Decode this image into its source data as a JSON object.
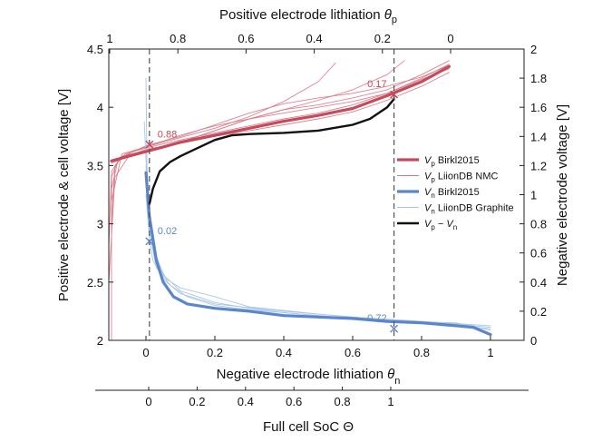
{
  "chart_data": {
    "type": "line",
    "top_axis": {
      "title_main": "Positive electrode lithiation ",
      "title_symbol": "θ",
      "title_sub": "p",
      "ticks": [
        {
          "value": 1,
          "label": "1"
        },
        {
          "value": 0.8,
          "label": "0.8"
        },
        {
          "value": 0.6,
          "label": "0.6"
        },
        {
          "value": 0.4,
          "label": "0.4"
        },
        {
          "value": 0.2,
          "label": "0.2"
        },
        {
          "value": 0,
          "label": "0"
        }
      ]
    },
    "bottom_axis": {
      "title_main": "Negative electrode lithiation ",
      "title_symbol": "θ",
      "title_sub": "n",
      "xlim": [
        -0.12,
        1.05
      ],
      "ticks": [
        {
          "value": 0,
          "label": "0"
        },
        {
          "value": 0.2,
          "label": "0.2"
        },
        {
          "value": 0.4,
          "label": "0.4"
        },
        {
          "value": 0.6,
          "label": "0.6"
        },
        {
          "value": 0.8,
          "label": "0.8"
        },
        {
          "value": 1,
          "label": "1"
        }
      ]
    },
    "soc_axis": {
      "title": "Full cell SoC Θ",
      "ticks": [
        {
          "value": 0,
          "label": "0"
        },
        {
          "value": 0.2,
          "label": "0.2"
        },
        {
          "value": 0.4,
          "label": "0.4"
        },
        {
          "value": 0.6,
          "label": "0.6"
        },
        {
          "value": 0.8,
          "label": "0.8"
        },
        {
          "value": 1,
          "label": "1"
        }
      ]
    },
    "left_axis": {
      "title": "Positive electrode & cell voltage [V]",
      "ylim": [
        2,
        4.5
      ],
      "ticks": [
        {
          "value": 2,
          "label": "2"
        },
        {
          "value": 2.5,
          "label": "2.5"
        },
        {
          "value": 3,
          "label": "3"
        },
        {
          "value": 3.5,
          "label": "3.5"
        },
        {
          "value": 4,
          "label": "4"
        },
        {
          "value": 4.5,
          "label": "4.5"
        }
      ]
    },
    "right_axis": {
      "title": "Negative electrode voltage [V]",
      "ylim": [
        0,
        2
      ],
      "ticks": [
        {
          "value": 0,
          "label": "0"
        },
        {
          "value": 0.2,
          "label": "0.2"
        },
        {
          "value": 0.4,
          "label": "0.4"
        },
        {
          "value": 0.6,
          "label": "0.6"
        },
        {
          "value": 0.8,
          "label": "0.8"
        },
        {
          "value": 1,
          "label": "1"
        },
        {
          "value": 1.2,
          "label": "1.2"
        },
        {
          "value": 1.4,
          "label": "1.4"
        },
        {
          "value": 1.6,
          "label": "1.6"
        },
        {
          "value": 1.8,
          "label": "1.8"
        },
        {
          "value": 2,
          "label": "2"
        }
      ]
    },
    "colors": {
      "positive": "#c44a5c",
      "positive_light": "#d97786",
      "negative": "#5b86cc",
      "negative_light": "#a9c6e8",
      "cell": "#111111",
      "dashed": "#555555"
    },
    "series": [
      {
        "name": "Vp Birkl2015",
        "axis": "left",
        "style": "thick-red",
        "x": [
          -0.1,
          -0.05,
          0,
          0.05,
          0.1,
          0.2,
          0.3,
          0.4,
          0.5,
          0.6,
          0.7,
          0.8,
          0.88
        ],
        "y": [
          3.54,
          3.58,
          3.62,
          3.66,
          3.7,
          3.76,
          3.82,
          3.88,
          3.93,
          3.99,
          4.1,
          4.22,
          4.35
        ]
      },
      {
        "name": "Vp LiionDB NMC",
        "axis": "left",
        "style": "thin-red",
        "curves": [
          {
            "x": [
              -0.1,
              -0.09,
              -0.06,
              0,
              0.1,
              0.2,
              0.3,
              0.4,
              0.5,
              0.6,
              0.7,
              0.8,
              0.88
            ],
            "y": [
              3.0,
              3.5,
              3.6,
              3.65,
              3.72,
              3.78,
              3.84,
              3.9,
              3.95,
              4.02,
              4.12,
              4.25,
              4.37
            ]
          },
          {
            "x": [
              -0.11,
              -0.1,
              -0.07,
              0,
              0.1,
              0.2,
              0.3,
              0.4,
              0.5,
              0.6,
              0.7,
              0.8,
              0.88
            ],
            "y": [
              2.8,
              3.45,
              3.58,
              3.63,
              3.7,
              3.8,
              3.9,
              3.98,
              4.02,
              4.08,
              4.15,
              4.28,
              4.4
            ]
          },
          {
            "x": [
              -0.1,
              -0.1,
              -0.08,
              -0.04,
              0,
              0.1,
              0.2,
              0.3,
              0.4,
              0.5,
              0.55
            ],
            "y": [
              2.0,
              3.4,
              3.55,
              3.62,
              3.66,
              3.74,
              3.82,
              3.92,
              4.05,
              4.22,
              4.38
            ]
          },
          {
            "x": [
              -0.1,
              -0.07,
              0,
              0.1,
              0.2,
              0.3,
              0.4,
              0.5,
              0.6,
              0.7,
              0.8,
              0.88
            ],
            "y": [
              3.2,
              3.6,
              3.66,
              3.76,
              3.84,
              3.9,
              3.95,
              4.0,
              4.05,
              4.12,
              4.24,
              4.33
            ]
          },
          {
            "x": [
              -0.11,
              -0.09,
              -0.05,
              0,
              0.1,
              0.2,
              0.3,
              0.4,
              0.5,
              0.6,
              0.7,
              0.8,
              0.88
            ],
            "y": [
              2.5,
              3.4,
              3.58,
              3.64,
              3.69,
              3.75,
              3.8,
              3.85,
              3.9,
              3.96,
              4.06,
              4.18,
              4.3
            ]
          },
          {
            "x": [
              -0.1,
              -0.08,
              0,
              0.1,
              0.2,
              0.3,
              0.4,
              0.5,
              0.6,
              0.7,
              0.8,
              0.88
            ],
            "y": [
              3.3,
              3.56,
              3.67,
              3.75,
              3.85,
              3.95,
              4.03,
              4.08,
              4.12,
              4.18,
              4.26,
              4.36
            ]
          },
          {
            "x": [
              -0.1,
              -0.05,
              0,
              0.1,
              0.2,
              0.3,
              0.4,
              0.5,
              0.6,
              0.7,
              0.75
            ],
            "y": [
              3.52,
              3.58,
              3.62,
              3.7,
              3.8,
              3.9,
              3.98,
              4.06,
              4.15,
              4.28,
              4.4
            ]
          }
        ]
      },
      {
        "name": "Vn Birkl2015",
        "axis": "right",
        "style": "thick-blue",
        "x": [
          0,
          0.01,
          0.02,
          0.03,
          0.05,
          0.08,
          0.12,
          0.2,
          0.3,
          0.4,
          0.5,
          0.6,
          0.7,
          0.8,
          0.9,
          0.95,
          1.0
        ],
        "y": [
          1.15,
          0.85,
          0.7,
          0.55,
          0.4,
          0.3,
          0.25,
          0.22,
          0.2,
          0.17,
          0.16,
          0.15,
          0.13,
          0.12,
          0.1,
          0.09,
          0.04
        ]
      },
      {
        "name": "Vn LiionDB Graphite",
        "axis": "right",
        "style": "thin-blue",
        "curves": [
          {
            "x": [
              0,
              0.003,
              0.01,
              0.03,
              0.06,
              0.1,
              0.2,
              0.3,
              0.5,
              0.7,
              0.9,
              1.0
            ],
            "y": [
              1.8,
              1.2,
              0.8,
              0.55,
              0.42,
              0.36,
              0.3,
              0.23,
              0.18,
              0.14,
              0.11,
              0.09
            ]
          },
          {
            "x": [
              -0.005,
              0.005,
              0.02,
              0.05,
              0.1,
              0.2,
              0.3,
              0.4,
              0.6,
              0.8,
              1.0
            ],
            "y": [
              1.5,
              1.0,
              0.65,
              0.45,
              0.34,
              0.26,
              0.22,
              0.19,
              0.15,
              0.12,
              0.08
            ]
          },
          {
            "x": [
              0,
              0.01,
              0.03,
              0.07,
              0.12,
              0.2,
              0.3,
              0.5,
              0.7,
              0.9,
              1.0
            ],
            "y": [
              1.2,
              0.75,
              0.5,
              0.38,
              0.3,
              0.24,
              0.21,
              0.17,
              0.13,
              0.12,
              0.07
            ]
          },
          {
            "x": [
              0,
              0.01,
              0.02,
              0.05,
              0.1,
              0.2,
              0.4,
              0.6,
              0.8,
              1.0
            ],
            "y": [
              1.0,
              0.7,
              0.55,
              0.42,
              0.32,
              0.25,
              0.2,
              0.16,
              0.13,
              0.1
            ]
          }
        ]
      },
      {
        "name": "Vp - Vn",
        "axis": "left",
        "style": "thick-black",
        "x": [
          0.01,
          0.02,
          0.04,
          0.07,
          0.1,
          0.15,
          0.2,
          0.25,
          0.3,
          0.4,
          0.5,
          0.6,
          0.65,
          0.7,
          0.72
        ],
        "y": [
          3.17,
          3.3,
          3.45,
          3.53,
          3.58,
          3.65,
          3.72,
          3.76,
          3.77,
          3.78,
          3.8,
          3.85,
          3.9,
          4.0,
          4.07
        ]
      }
    ],
    "annotations": [
      {
        "text": "0.88",
        "axis": "left",
        "x": 0.01,
        "y": 3.68,
        "color": "positive"
      },
      {
        "text": "0.17",
        "axis": "left",
        "x": 0.72,
        "y": 4.11,
        "color": "positive"
      },
      {
        "text": "0.02",
        "axis": "right",
        "x": 0.01,
        "y": 0.68,
        "color": "negative"
      },
      {
        "text": "0.72",
        "axis": "right",
        "x": 0.72,
        "y": 0.08,
        "color": "negative"
      }
    ],
    "vlines": [
      0.01,
      0.72
    ],
    "legend": {
      "placement": "right-middle",
      "entries": [
        {
          "sym": "V",
          "sub": "p",
          "text": " Birkl2015",
          "style": "thick-red"
        },
        {
          "sym": "V",
          "sub": "p",
          "text": " LiionDB NMC",
          "style": "thin-red"
        },
        {
          "sym": "V",
          "sub": "n",
          "text": " Birkl2015",
          "style": "thick-blue"
        },
        {
          "sym": "V",
          "sub": "n",
          "text": " LiionDB Graphite",
          "style": "thin-blue"
        },
        {
          "sym": "V",
          "sub": "p",
          "text": " − ",
          "sym2": "V",
          "sub2": "n",
          "style": "thick-black"
        }
      ]
    }
  }
}
